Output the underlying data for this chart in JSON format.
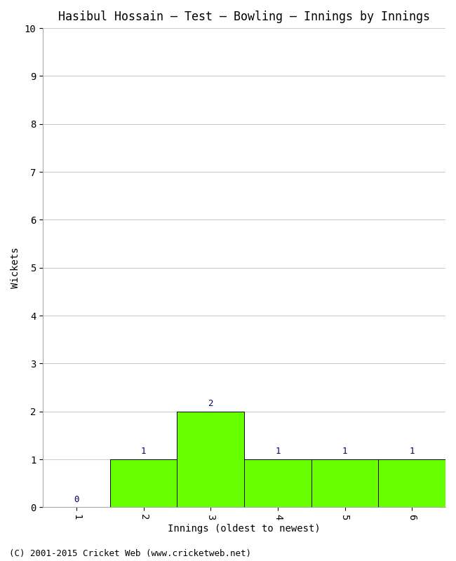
{
  "title": "Hasibul Hossain – Test – Bowling – Innings by Innings",
  "xlabel": "Innings (oldest to newest)",
  "ylabel": "Wickets",
  "categories": [
    "1",
    "2",
    "3",
    "4",
    "5",
    "6"
  ],
  "values": [
    0,
    1,
    2,
    1,
    1,
    1
  ],
  "bar_color": "#66ff00",
  "bar_edge_color": "#000000",
  "ylim": [
    0,
    10
  ],
  "yticks": [
    0,
    1,
    2,
    3,
    4,
    5,
    6,
    7,
    8,
    9,
    10
  ],
  "background_color": "#ffffff",
  "plot_bg_color": "#ffffff",
  "grid_color": "#cccccc",
  "title_color": "#000000",
  "label_color": "#000000",
  "annotation_color": "#000066",
  "footer": "(C) 2001-2015 Cricket Web (www.cricketweb.net)",
  "title_fontsize": 12,
  "axis_fontsize": 10,
  "annotation_fontsize": 9,
  "footer_fontsize": 9
}
